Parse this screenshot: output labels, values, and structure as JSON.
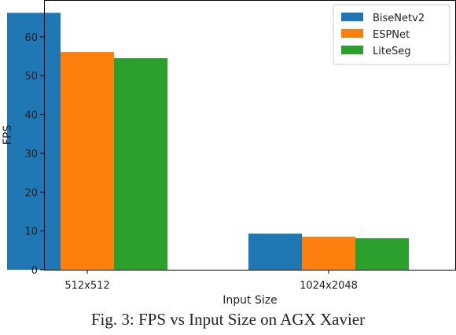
{
  "chart_data": {
    "type": "bar",
    "categories": [
      "512x512",
      "1024x2048"
    ],
    "series": [
      {
        "name": "BiseNetv2",
        "values": [
          66.2,
          9.3
        ],
        "color": "#1f77b4"
      },
      {
        "name": "ESPNet",
        "values": [
          56.1,
          8.5
        ],
        "color": "#ff7f0e"
      },
      {
        "name": "LiteSeg",
        "values": [
          54.5,
          8.1
        ],
        "color": "#2ca02c"
      }
    ],
    "xlabel": "Input Size",
    "ylabel": "FPS",
    "ylim": [
      0,
      69.5
    ],
    "yticks": [
      0,
      10,
      20,
      30,
      40,
      50,
      60
    ],
    "legend_position": "top-right",
    "grid": false
  },
  "caption": "Fig. 3: FPS vs Input Size on AGX Xavier"
}
